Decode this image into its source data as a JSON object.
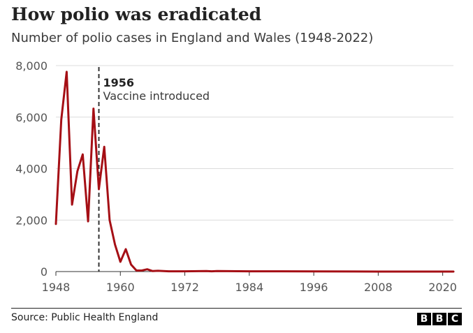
{
  "chart_data": {
    "type": "line",
    "title": "How polio was eradicated",
    "subtitle": "Number of polio cases in England and Wales (1948-2022)",
    "source": "Source: Public Health England",
    "x": [
      1948,
      1949,
      1950,
      1951,
      1952,
      1953,
      1954,
      1955,
      1956,
      1957,
      1958,
      1959,
      1960,
      1961,
      1962,
      1963,
      1964,
      1965,
      1966,
      1967,
      1968,
      1969,
      1970,
      1972,
      1976,
      1977,
      1978,
      1984,
      1990,
      1996,
      2008,
      2020,
      2022
    ],
    "series": [
      {
        "color": "#a50f15",
        "values": [
          1850,
          5900,
          7760,
          2600,
          3900,
          4550,
          1950,
          6330,
          3200,
          4850,
          2000,
          1050,
          380,
          870,
          270,
          40,
          40,
          90,
          20,
          30,
          20,
          10,
          10,
          10,
          20,
          10,
          20,
          10,
          10,
          5,
          0,
          0,
          0
        ]
      }
    ],
    "xlim": [
      1948,
      2022
    ],
    "ylim": [
      0,
      8000
    ],
    "xticks": [
      1948,
      1960,
      1972,
      1984,
      1996,
      2008,
      2020
    ],
    "xtick_labels": [
      "1948",
      "1960",
      "1972",
      "1984",
      "1996",
      "2008",
      "2020"
    ],
    "yticks": [
      0,
      2000,
      4000,
      6000,
      8000
    ],
    "ytick_labels": [
      "0",
      "2,000",
      "4,000",
      "6,000",
      "8,000"
    ],
    "grid": true,
    "annotations": [
      {
        "x": 1956,
        "year": "1956",
        "label": "Vaccine introduced"
      }
    ]
  },
  "logo": {
    "letters": [
      "B",
      "B",
      "C"
    ]
  }
}
